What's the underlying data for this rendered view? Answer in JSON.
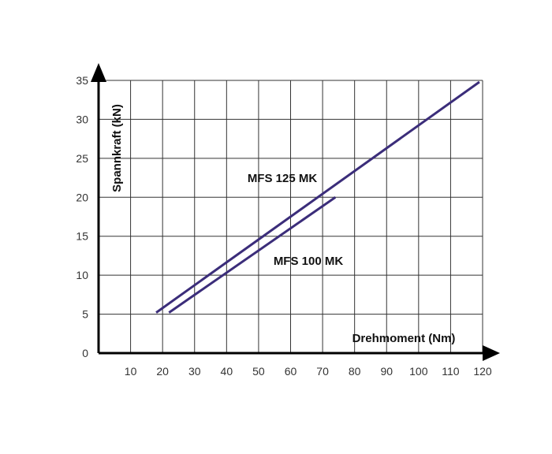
{
  "chart_data": {
    "type": "line",
    "xlabel": "Drehmoment (Nm)",
    "ylabel": "Spannkraft (kN)",
    "xlim": [
      0,
      120
    ],
    "ylim": [
      0,
      35
    ],
    "x_ticks": [
      10,
      20,
      30,
      40,
      50,
      60,
      70,
      80,
      90,
      100,
      110,
      120
    ],
    "y_ticks": [
      0,
      5,
      10,
      15,
      20,
      25,
      30,
      35
    ],
    "grid": true,
    "series": [
      {
        "name": "MFS 125 MK",
        "x": [
          18,
          119
        ],
        "y": [
          5.2,
          34.8
        ]
      },
      {
        "name": "MFS 100 MK",
        "x": [
          22,
          74
        ],
        "y": [
          5.2,
          20.0
        ]
      }
    ],
    "colors": {
      "line": "#3b2d7a",
      "axis": "#000000",
      "grid": "#333333"
    }
  }
}
